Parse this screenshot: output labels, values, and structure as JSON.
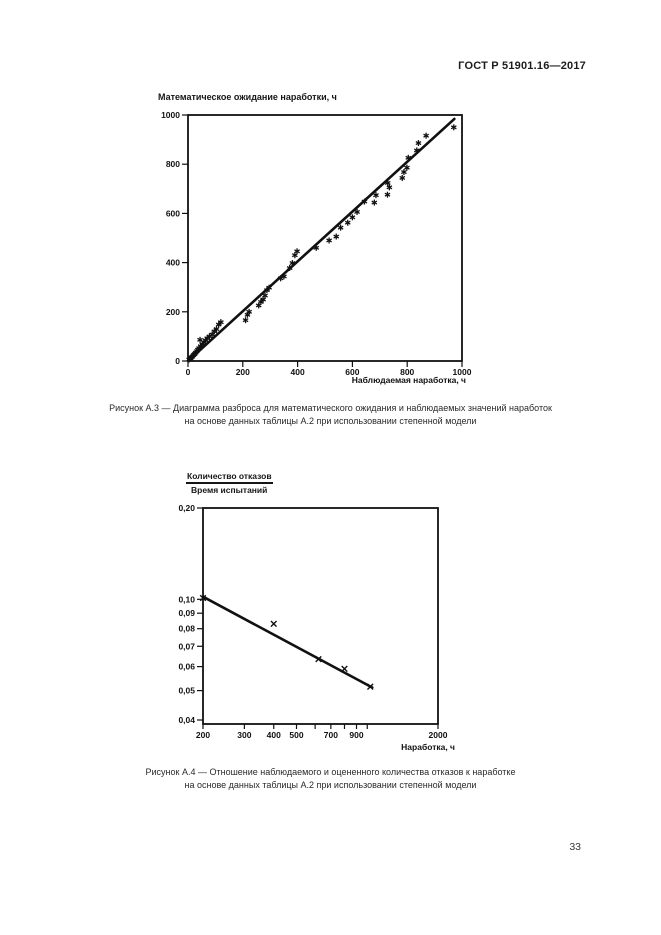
{
  "page": {
    "header": "ГОСТ Р 51901.16—2017",
    "number": "33"
  },
  "figure_a3": {
    "caption_line1": "Рисунок А.3 — Диаграмма разброса для математического ожидания и наблюдаемых значений наработок",
    "caption_line2": "на основе данных таблицы А.2 при использовании степенной модели"
  },
  "figure_a4": {
    "caption_line1": "Рисунок А.4 — Отношение наблюдаемого и оцененного количества отказов к наработке",
    "caption_line2": "на основе данных таблицы А.2 при использовании степенной модели"
  },
  "chart_data": [
    {
      "id": "chart-a3",
      "type": "scatter",
      "title": "Математическое ожидание наработки, ч",
      "xlabel": "Наблюдаемая наработка, ч",
      "ylabel": "Математическое ожидание наработки, ч",
      "xlim": [
        0,
        1000
      ],
      "ylim": [
        0,
        1000
      ],
      "x_ticks": [
        0,
        200,
        400,
        600,
        800,
        1000
      ],
      "y_ticks": [
        0,
        200,
        400,
        600,
        800,
        1000
      ],
      "marker": "asterisk",
      "grid": false,
      "fit_line": {
        "x1": 8,
        "y1": 8,
        "x2": 972,
        "y2": 984
      },
      "points": [
        [
          4,
          6
        ],
        [
          8,
          10
        ],
        [
          12,
          14
        ],
        [
          16,
          18
        ],
        [
          20,
          24
        ],
        [
          24,
          28
        ],
        [
          28,
          34
        ],
        [
          32,
          40
        ],
        [
          36,
          46
        ],
        [
          40,
          52
        ],
        [
          44,
          86
        ],
        [
          46,
          60
        ],
        [
          52,
          68
        ],
        [
          58,
          76
        ],
        [
          64,
          84
        ],
        [
          70,
          92
        ],
        [
          78,
          100
        ],
        [
          88,
          108
        ],
        [
          96,
          120
        ],
        [
          104,
          130
        ],
        [
          112,
          148
        ],
        [
          120,
          158
        ],
        [
          210,
          166
        ],
        [
          217,
          188
        ],
        [
          223,
          200
        ],
        [
          258,
          226
        ],
        [
          266,
          240
        ],
        [
          274,
          250
        ],
        [
          281,
          266
        ],
        [
          288,
          288
        ],
        [
          296,
          298
        ],
        [
          338,
          336
        ],
        [
          350,
          344
        ],
        [
          371,
          378
        ],
        [
          381,
          398
        ],
        [
          390,
          430
        ],
        [
          398,
          446
        ],
        [
          468,
          460
        ],
        [
          515,
          490
        ],
        [
          541,
          506
        ],
        [
          557,
          542
        ],
        [
          583,
          562
        ],
        [
          600,
          584
        ],
        [
          617,
          606
        ],
        [
          644,
          648
        ],
        [
          680,
          644
        ],
        [
          686,
          674
        ],
        [
          728,
          676
        ],
        [
          735,
          706
        ],
        [
          729,
          724
        ],
        [
          782,
          744
        ],
        [
          788,
          768
        ],
        [
          799,
          786
        ],
        [
          804,
          826
        ],
        [
          835,
          856
        ],
        [
          841,
          886
        ],
        [
          869,
          916
        ],
        [
          970,
          950
        ]
      ]
    },
    {
      "id": "chart-a4",
      "type": "scatter",
      "x_scale": "log",
      "y_scale": "log",
      "title_numerator": "Количество отказов",
      "title_denominator": "Время испытаний",
      "xlabel": "Наработка, ч",
      "xlim": [
        200,
        2000
      ],
      "ylim": [
        0.04,
        0.2
      ],
      "x_ticks_labeled": [
        200,
        300,
        400,
        500,
        700,
        900,
        2000
      ],
      "x_tick_labels": [
        "200",
        "300",
        "400",
        "500",
        "700",
        "900",
        "2000"
      ],
      "x_ticks_minor": [
        600,
        800,
        1000
      ],
      "y_tick_values": [
        0.2,
        0.1,
        0.09,
        0.08,
        0.07,
        0.06,
        0.05,
        0.04
      ],
      "y_tick_labels": [
        "0,20",
        "0,10",
        "0,09",
        "0,08",
        "0,07",
        "0,06",
        "0,05",
        "0,04"
      ],
      "marker": "x",
      "grid": false,
      "fit_line": {
        "x1": 200,
        "y1": 0.102,
        "x2": 1050,
        "y2": 0.0512
      },
      "points": [
        [
          200,
          0.101
        ],
        [
          400,
          0.083
        ],
        [
          620,
          0.0635
        ],
        [
          800,
          0.059
        ],
        [
          1030,
          0.0515
        ]
      ]
    }
  ]
}
